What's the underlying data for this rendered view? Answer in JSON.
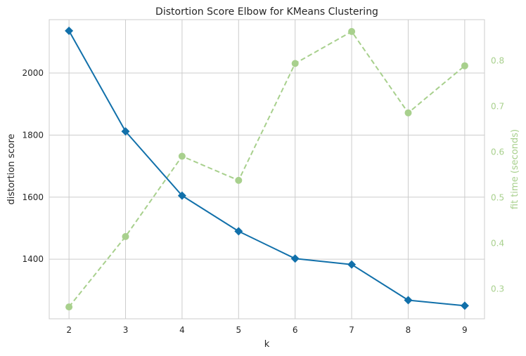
{
  "chart_data": {
    "type": "line",
    "title": "Distortion Score Elbow for KMeans Clustering",
    "xlabel": "k",
    "ylabel": "distortion score",
    "y2label": "fit time (seconds)",
    "x": [
      2,
      3,
      4,
      5,
      6,
      7,
      8,
      9
    ],
    "xlim": [
      1.65,
      9.35
    ],
    "ylim": [
      1208,
      2172
    ],
    "y2lim": [
      0.235,
      0.89
    ],
    "xticks": [
      "2",
      "3",
      "4",
      "5",
      "6",
      "7",
      "8",
      "9"
    ],
    "yticks": [
      1400,
      1600,
      1800,
      2000
    ],
    "y2ticks": [
      "0.3",
      "0.4",
      "0.5",
      "0.6",
      "0.7",
      "0.8"
    ],
    "grid": true,
    "series": [
      {
        "axis": "left",
        "values": [
          2136,
          1812,
          1605,
          1490,
          1402,
          1383,
          1268,
          1250
        ],
        "color": "#1170aa",
        "marker": "diamond",
        "linestyle": "solid"
      },
      {
        "axis": "right",
        "values": [
          0.261,
          0.415,
          0.591,
          0.538,
          0.794,
          0.864,
          0.686,
          0.789
        ],
        "color": "#a8d08d",
        "marker": "circle",
        "linestyle": "dashed"
      }
    ]
  }
}
